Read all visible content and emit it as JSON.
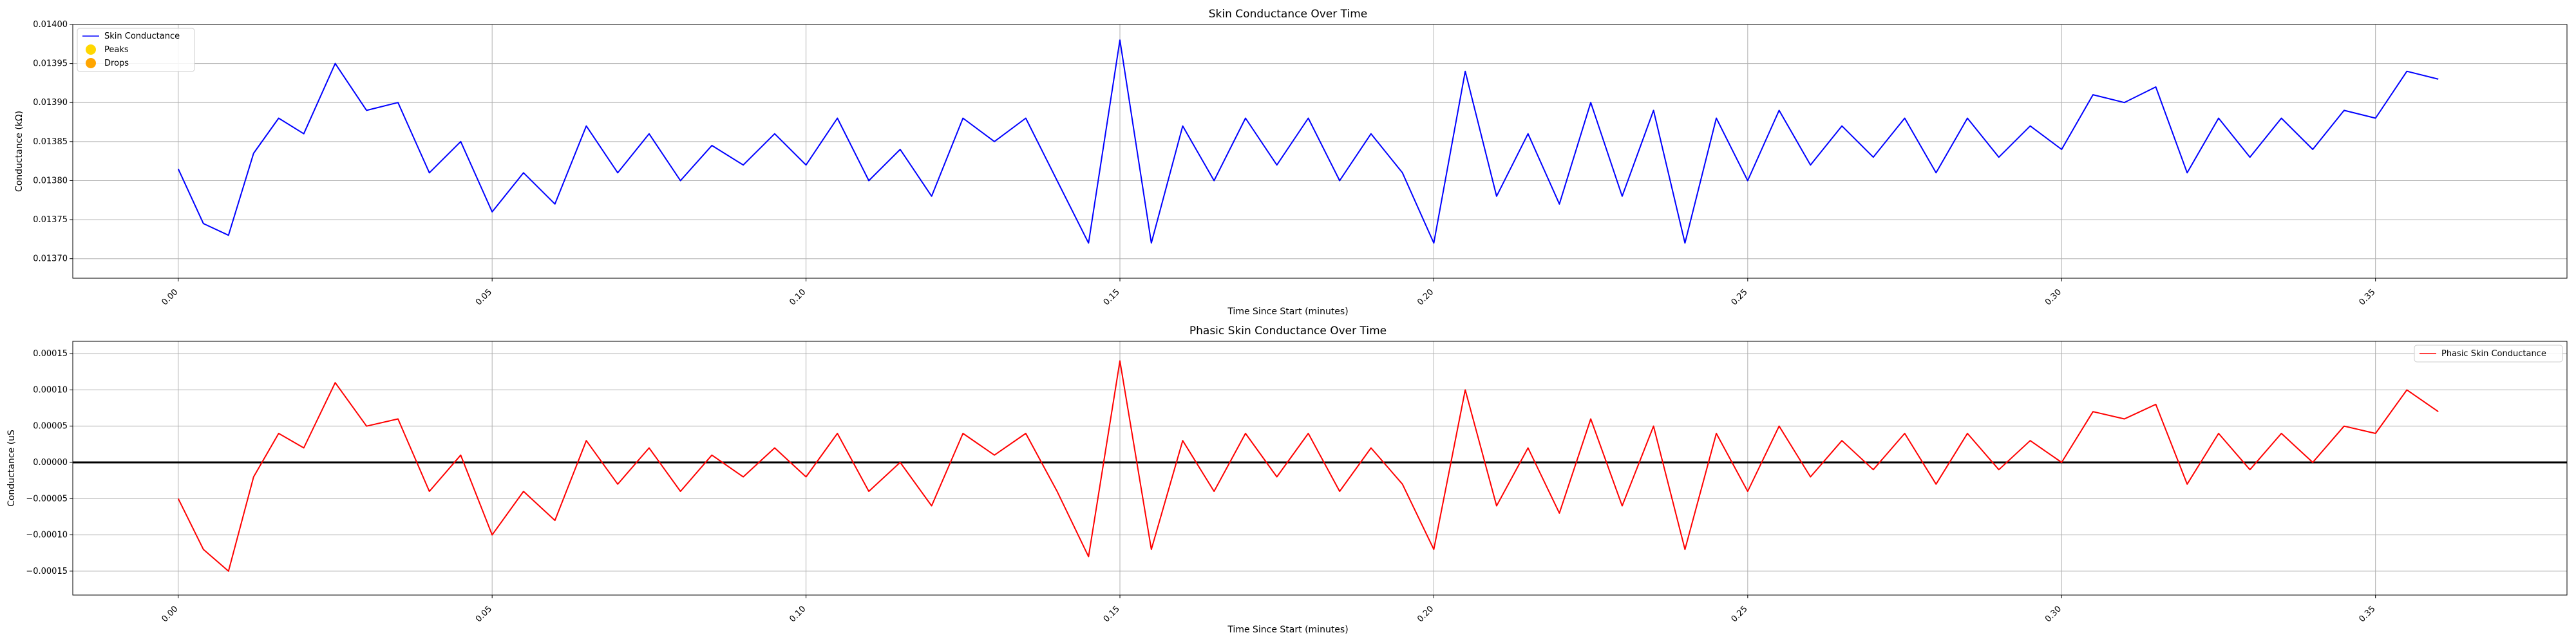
{
  "chart_data": [
    {
      "type": "line",
      "title": "Skin Conductance Over Time",
      "xlabel": "Time Since Start (minutes)",
      "ylabel": "Conductance (kΩ)",
      "xlim": [
        -0.0168,
        0.3805
      ],
      "ylim": [
        0.013675,
        0.014
      ],
      "x_ticks": [
        "0.00",
        "0.05",
        "0.10",
        "0.15",
        "0.20",
        "0.25",
        "0.30",
        "0.35"
      ],
      "y_ticks": [
        "0.01370",
        "0.01375",
        "0.01380",
        "0.01385",
        "0.01390",
        "0.01395",
        "0.01400"
      ],
      "grid": true,
      "legend_position": "top-left",
      "legend": [
        {
          "label": "Skin Conductance",
          "kind": "line",
          "color": "#0000ff"
        },
        {
          "label": "Peaks",
          "kind": "marker",
          "color": "#ffd700"
        },
        {
          "label": "Drops",
          "kind": "marker",
          "color": "#ffa500"
        }
      ],
      "series": [
        {
          "name": "Skin Conductance",
          "color": "#0000ff",
          "x": [
            0.0,
            0.004,
            0.008,
            0.012,
            0.016,
            0.02,
            0.025,
            0.03,
            0.035,
            0.04,
            0.045,
            0.05,
            0.055,
            0.06,
            0.065,
            0.07,
            0.075,
            0.08,
            0.085,
            0.09,
            0.095,
            0.1,
            0.105,
            0.11,
            0.115,
            0.12,
            0.125,
            0.13,
            0.135,
            0.14,
            0.145,
            0.15,
            0.155,
            0.16,
            0.165,
            0.17,
            0.175,
            0.18,
            0.185,
            0.19,
            0.195,
            0.2,
            0.205,
            0.21,
            0.215,
            0.22,
            0.225,
            0.23,
            0.235,
            0.24,
            0.245,
            0.25,
            0.255,
            0.26,
            0.265,
            0.27,
            0.275,
            0.28,
            0.285,
            0.29,
            0.295,
            0.3,
            0.305,
            0.31,
            0.315,
            0.32,
            0.325,
            0.33,
            0.335,
            0.34,
            0.345,
            0.35,
            0.355,
            0.36
          ],
          "y": [
            0.013815,
            0.013745,
            0.01373,
            0.013835,
            0.01388,
            0.01386,
            0.01395,
            0.01389,
            0.0139,
            0.01381,
            0.01385,
            0.01376,
            0.01381,
            0.01377,
            0.01387,
            0.01381,
            0.01386,
            0.0138,
            0.013845,
            0.01382,
            0.01386,
            0.01382,
            0.01388,
            0.0138,
            0.01384,
            0.01378,
            0.01388,
            0.01385,
            0.01388,
            0.0138,
            0.01372,
            0.01398,
            0.01372,
            0.01387,
            0.0138,
            0.01388,
            0.01382,
            0.01388,
            0.0138,
            0.01386,
            0.01381,
            0.01372,
            0.01394,
            0.01378,
            0.01386,
            0.01377,
            0.0139,
            0.01378,
            0.01389,
            0.01372,
            0.01388,
            0.0138,
            0.01389,
            0.01382,
            0.01387,
            0.01383,
            0.01388,
            0.01381,
            0.01388,
            0.01383,
            0.01387,
            0.01384,
            0.01391,
            0.0139,
            0.01392,
            0.01381,
            0.01388,
            0.01383,
            0.01388,
            0.01384,
            0.01389,
            0.01388,
            0.01394,
            0.01393
          ]
        }
      ],
      "peaks": [],
      "drops": []
    },
    {
      "type": "line",
      "title": "Phasic Skin Conductance Over Time",
      "xlabel": "Time Since Start (minutes)",
      "ylabel": "Conductance (uS",
      "xlim": [
        -0.0168,
        0.3805
      ],
      "ylim": [
        -0.000183,
        0.000167
      ],
      "x_ticks": [
        "0.00",
        "0.05",
        "0.10",
        "0.15",
        "0.20",
        "0.25",
        "0.30",
        "0.35"
      ],
      "y_ticks": [
        "−0.00015",
        "−0.00010",
        "−0.00005",
        "0.00000",
        "0.00005",
        "0.00010",
        "0.00015"
      ],
      "grid": true,
      "zero_line": true,
      "legend_position": "top-right",
      "legend": [
        {
          "label": "Phasic Skin Conductance",
          "kind": "line",
          "color": "#ff0000"
        }
      ],
      "series": [
        {
          "name": "Phasic Skin Conductance",
          "color": "#ff0000",
          "x": [
            0.0,
            0.004,
            0.008,
            0.012,
            0.016,
            0.02,
            0.025,
            0.03,
            0.035,
            0.04,
            0.045,
            0.05,
            0.055,
            0.06,
            0.065,
            0.07,
            0.075,
            0.08,
            0.085,
            0.09,
            0.095,
            0.1,
            0.105,
            0.11,
            0.115,
            0.12,
            0.125,
            0.13,
            0.135,
            0.14,
            0.145,
            0.15,
            0.155,
            0.16,
            0.165,
            0.17,
            0.175,
            0.18,
            0.185,
            0.19,
            0.195,
            0.2,
            0.205,
            0.21,
            0.215,
            0.22,
            0.225,
            0.23,
            0.235,
            0.24,
            0.245,
            0.25,
            0.255,
            0.26,
            0.265,
            0.27,
            0.275,
            0.28,
            0.285,
            0.29,
            0.295,
            0.3,
            0.305,
            0.31,
            0.315,
            0.32,
            0.325,
            0.33,
            0.335,
            0.34,
            0.345,
            0.35,
            0.355,
            0.36
          ],
          "y": [
            -5e-05,
            -0.00012,
            -0.00015,
            -2e-05,
            4e-05,
            2e-05,
            0.00011,
            5e-05,
            6e-05,
            -4e-05,
            1e-05,
            -0.0001,
            -4e-05,
            -8e-05,
            3e-05,
            -3e-05,
            2e-05,
            -4e-05,
            1e-05,
            -2e-05,
            2e-05,
            -2e-05,
            4e-05,
            -4e-05,
            0.0,
            -6e-05,
            4e-05,
            1e-05,
            4e-05,
            -4e-05,
            -0.00013,
            0.00014,
            -0.00012,
            3e-05,
            -4e-05,
            4e-05,
            -2e-05,
            4e-05,
            -4e-05,
            2e-05,
            -3e-05,
            -0.00012,
            0.0001,
            -6e-05,
            2e-05,
            -7e-05,
            6e-05,
            -6e-05,
            5e-05,
            -0.00012,
            4e-05,
            -4e-05,
            5e-05,
            -2e-05,
            3e-05,
            -1e-05,
            4e-05,
            -3e-05,
            4e-05,
            -1e-05,
            3e-05,
            0.0,
            7e-05,
            6e-05,
            8e-05,
            -3e-05,
            4e-05,
            -1e-05,
            4e-05,
            0.0,
            5e-05,
            4e-05,
            0.0001,
            7e-05
          ]
        }
      ]
    }
  ]
}
